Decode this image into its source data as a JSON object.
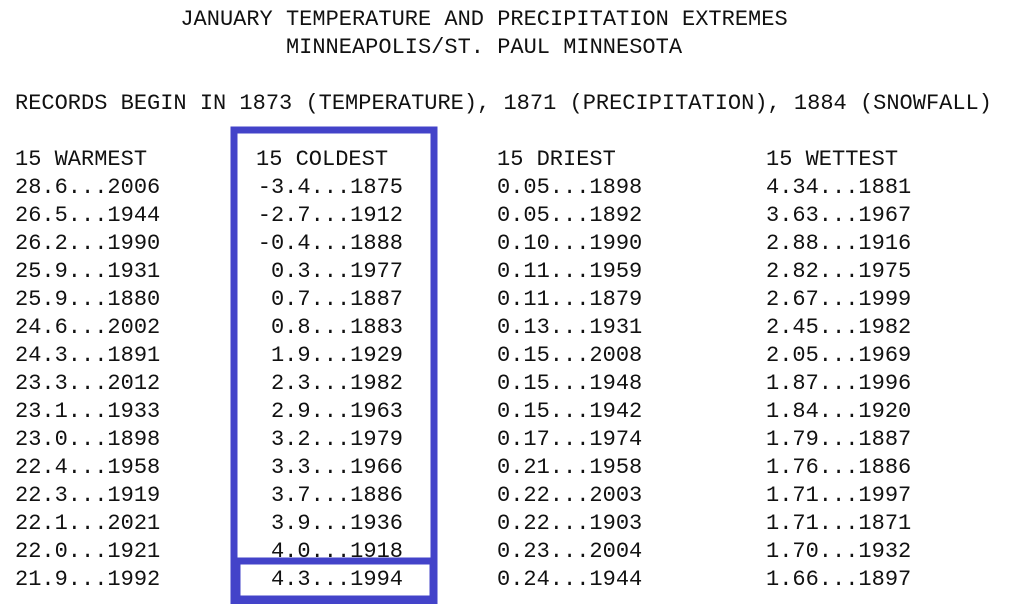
{
  "header": {
    "title": "JANUARY TEMPERATURE AND PRECIPITATION EXTREMES",
    "subtitle": "MINNEAPOLIS/ST. PAUL MINNESOTA"
  },
  "note": "RECORDS BEGIN IN 1873 (TEMPERATURE), 1871 (PRECIPITATION), 1884 (SNOWFALL)",
  "columns": [
    {
      "header": "15 WARMEST",
      "entries": [
        "28.6...2006",
        "26.5...1944",
        "26.2...1990",
        "25.9...1931",
        "25.9...1880",
        "24.6...2002",
        "24.3...1891",
        "23.3...2012",
        "23.1...1933",
        "23.0...1898",
        "22.4...1958",
        "22.3...1919",
        "22.1...2021",
        "22.0...1921",
        "21.9...1992"
      ]
    },
    {
      "header": "15 COLDEST",
      "entries": [
        "-3.4...1875",
        "-2.7...1912",
        "-0.4...1888",
        "0.3...1977",
        "0.7...1887",
        "0.8...1883",
        "1.9...1929",
        "2.3...1982",
        "2.9...1963",
        "3.2...1979",
        "3.3...1966",
        "3.7...1886",
        "3.9...1936",
        "4.0...1918",
        "4.3...1994"
      ]
    },
    {
      "header": "15 DRIEST",
      "entries": [
        "0.05...1898",
        "0.05...1892",
        "0.10...1990",
        "0.11...1959",
        "0.11...1879",
        "0.13...1931",
        "0.15...2008",
        "0.15...1948",
        "0.15...1942",
        "0.17...1974",
        "0.21...1958",
        "0.22...2003",
        "0.22...1903",
        "0.23...2004",
        "0.24...1944"
      ]
    },
    {
      "header": "15 WETTEST",
      "entries": [
        "4.34...1881",
        "3.63...1967",
        "2.88...1916",
        "2.82...1975",
        "2.67...1999",
        "2.45...1982",
        "2.05...1969",
        "1.87...1996",
        "1.84...1920",
        "1.79...1887",
        "1.76...1886",
        "1.71...1997",
        "1.71...1871",
        "1.70...1932",
        "1.66...1897"
      ]
    }
  ]
}
